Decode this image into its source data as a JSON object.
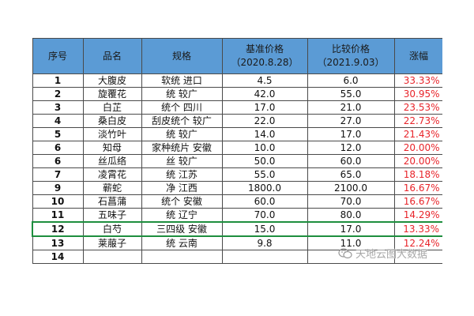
{
  "table": {
    "headers": {
      "no": "序号",
      "name": "品名",
      "spec": "规格",
      "base_price": "基准价格",
      "base_date": "（2020.8.28）",
      "comp_price": "比较价格",
      "comp_date": "（2021.9.03）",
      "rise": "涨幅"
    },
    "rows": [
      {
        "no": "1",
        "name": "大腹皮",
        "spec": "软统 进口",
        "base": "4.5",
        "comp": "6.0",
        "rise": "33.33%"
      },
      {
        "no": "2",
        "name": "旋覆花",
        "spec": "统 较广",
        "base": "42.0",
        "comp": "55.0",
        "rise": "30.95%"
      },
      {
        "no": "3",
        "name": "白芷",
        "spec": "统个 四川",
        "base": "17.0",
        "comp": "21.0",
        "rise": "23.53%"
      },
      {
        "no": "4",
        "name": "桑白皮",
        "spec": "刮皮统个 较广",
        "base": "22.0",
        "comp": "27.0",
        "rise": "22.73%"
      },
      {
        "no": "5",
        "name": "淡竹叶",
        "spec": "统 较广",
        "base": "14.0",
        "comp": "17.0",
        "rise": "21.43%"
      },
      {
        "no": "6",
        "name": "知母",
        "spec": "家种统片 安徽",
        "base": "10.0",
        "comp": "12.0",
        "rise": "20.00%"
      },
      {
        "no": "6",
        "name": "丝瓜络",
        "spec": "丝 较广",
        "base": "50.0",
        "comp": "60.0",
        "rise": "20.00%"
      },
      {
        "no": "7",
        "name": "凌霄花",
        "spec": "统 江苏",
        "base": "55.0",
        "comp": "65.0",
        "rise": "18.18%"
      },
      {
        "no": "9",
        "name": "蕲蛇",
        "spec": "净 江西",
        "base": "1800.0",
        "comp": "2100.0",
        "rise": "16.67%"
      },
      {
        "no": "10",
        "name": "石菖蒲",
        "spec": "统个 安徽",
        "base": "60.0",
        "comp": "70.0",
        "rise": "16.67%"
      },
      {
        "no": "11",
        "name": "五味子",
        "spec": "统 辽宁",
        "base": "70.0",
        "comp": "80.0",
        "rise": "14.29%"
      },
      {
        "no": "12",
        "name": "白芍",
        "spec": "三四级 安徽",
        "base": "15.0",
        "comp": "17.0",
        "rise": "13.33%"
      },
      {
        "no": "13",
        "name": "莱菔子",
        "spec": "统 云南",
        "base": "9.8",
        "comp": "11.0",
        "rise": "12.24%"
      },
      {
        "no": "14",
        "name": "",
        "spec": "",
        "base": "",
        "comp": "",
        "rise": ""
      }
    ],
    "selected_row_index": 11
  },
  "watermark": {
    "text": "天地云图大数据",
    "icon": "wechat-logo-icon"
  },
  "colors": {
    "header_bg": "#5b9bd5",
    "rise_text": "#e8242a",
    "selection_border": "#1e8e3e"
  }
}
